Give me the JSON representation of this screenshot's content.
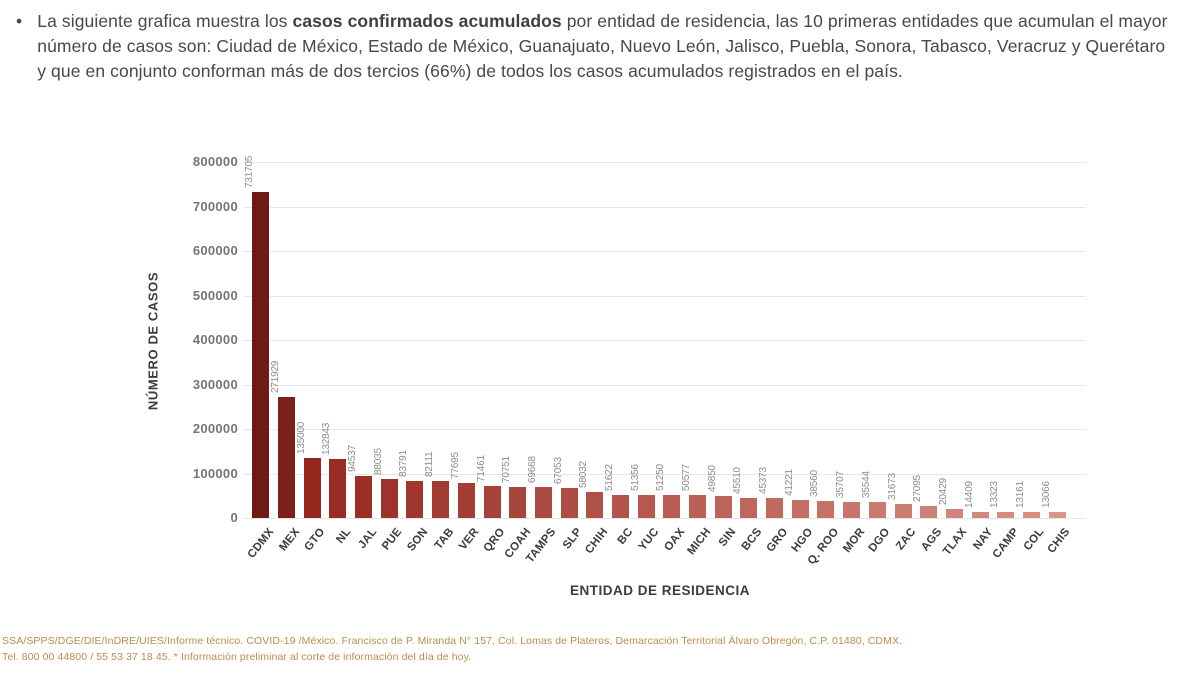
{
  "intro": {
    "bullet": "•",
    "pre": "La siguiente grafica muestra los ",
    "bold": "casos confirmados acumulados",
    "post": " por entidad de residencia, las 10 primeras entidades que acumulan el mayor número de casos son: Ciudad de México, Estado de México, Guanajuato, Nuevo León, Jalisco, Puebla, Sonora, Tabasco, Veracruz y Querétaro y que en conjunto conforman más de dos tercios (66%) de todos los casos acumulados registrados en el país."
  },
  "chart_data": {
    "type": "bar",
    "title": "",
    "xlabel": "ENTIDAD DE RESIDENCIA",
    "ylabel": "NÚMERO DE CASOS",
    "ylim": [
      0,
      800000
    ],
    "yticks": [
      0,
      100000,
      200000,
      300000,
      400000,
      500000,
      600000,
      700000,
      800000
    ],
    "grid": true,
    "legend": false,
    "categories": [
      "CDMX",
      "MEX",
      "GTO",
      "NL",
      "JAL",
      "PUE",
      "SON",
      "TAB",
      "VER",
      "QRO",
      "COAH",
      "TAMPS",
      "SLP",
      "CHIH",
      "BC",
      "YUC",
      "OAX",
      "MICH",
      "SIN",
      "BCS",
      "GRO",
      "HGO",
      "Q. ROO",
      "MOR",
      "DGO",
      "ZAC",
      "AGS",
      "TLAX",
      "NAY",
      "CAMP",
      "COL",
      "CHIS"
    ],
    "values": [
      731705,
      271929,
      135000,
      132843,
      94537,
      88035,
      83791,
      82111,
      77695,
      71461,
      70751,
      69668,
      67053,
      58032,
      51622,
      51356,
      51250,
      50577,
      49850,
      45510,
      45373,
      41221,
      38560,
      35707,
      35544,
      31673,
      27095,
      20429,
      14409,
      13323,
      13161,
      13066
    ],
    "colors": {
      "first_bar": "#6e1b17",
      "second_bar": "#7c201b",
      "ramp_start": "#96281f",
      "ramp_end": "#db9488",
      "gridline": "#e7e7e7"
    }
  },
  "footer": {
    "line1": "SSA/SPPS/DGE/DIE/InDRE/UIES/Informe técnico. COVID-19 /México. Francisco de P. Miranda N° 157, Col. Lomas de Plateros, Demarcación Territorial Álvaro Obregón, C.P. 01480, CDMX.",
    "line2": "Tel. 800 00 44800 / 55 53 37 18 45. * Información preliminar al corte de información del día de hoy."
  }
}
